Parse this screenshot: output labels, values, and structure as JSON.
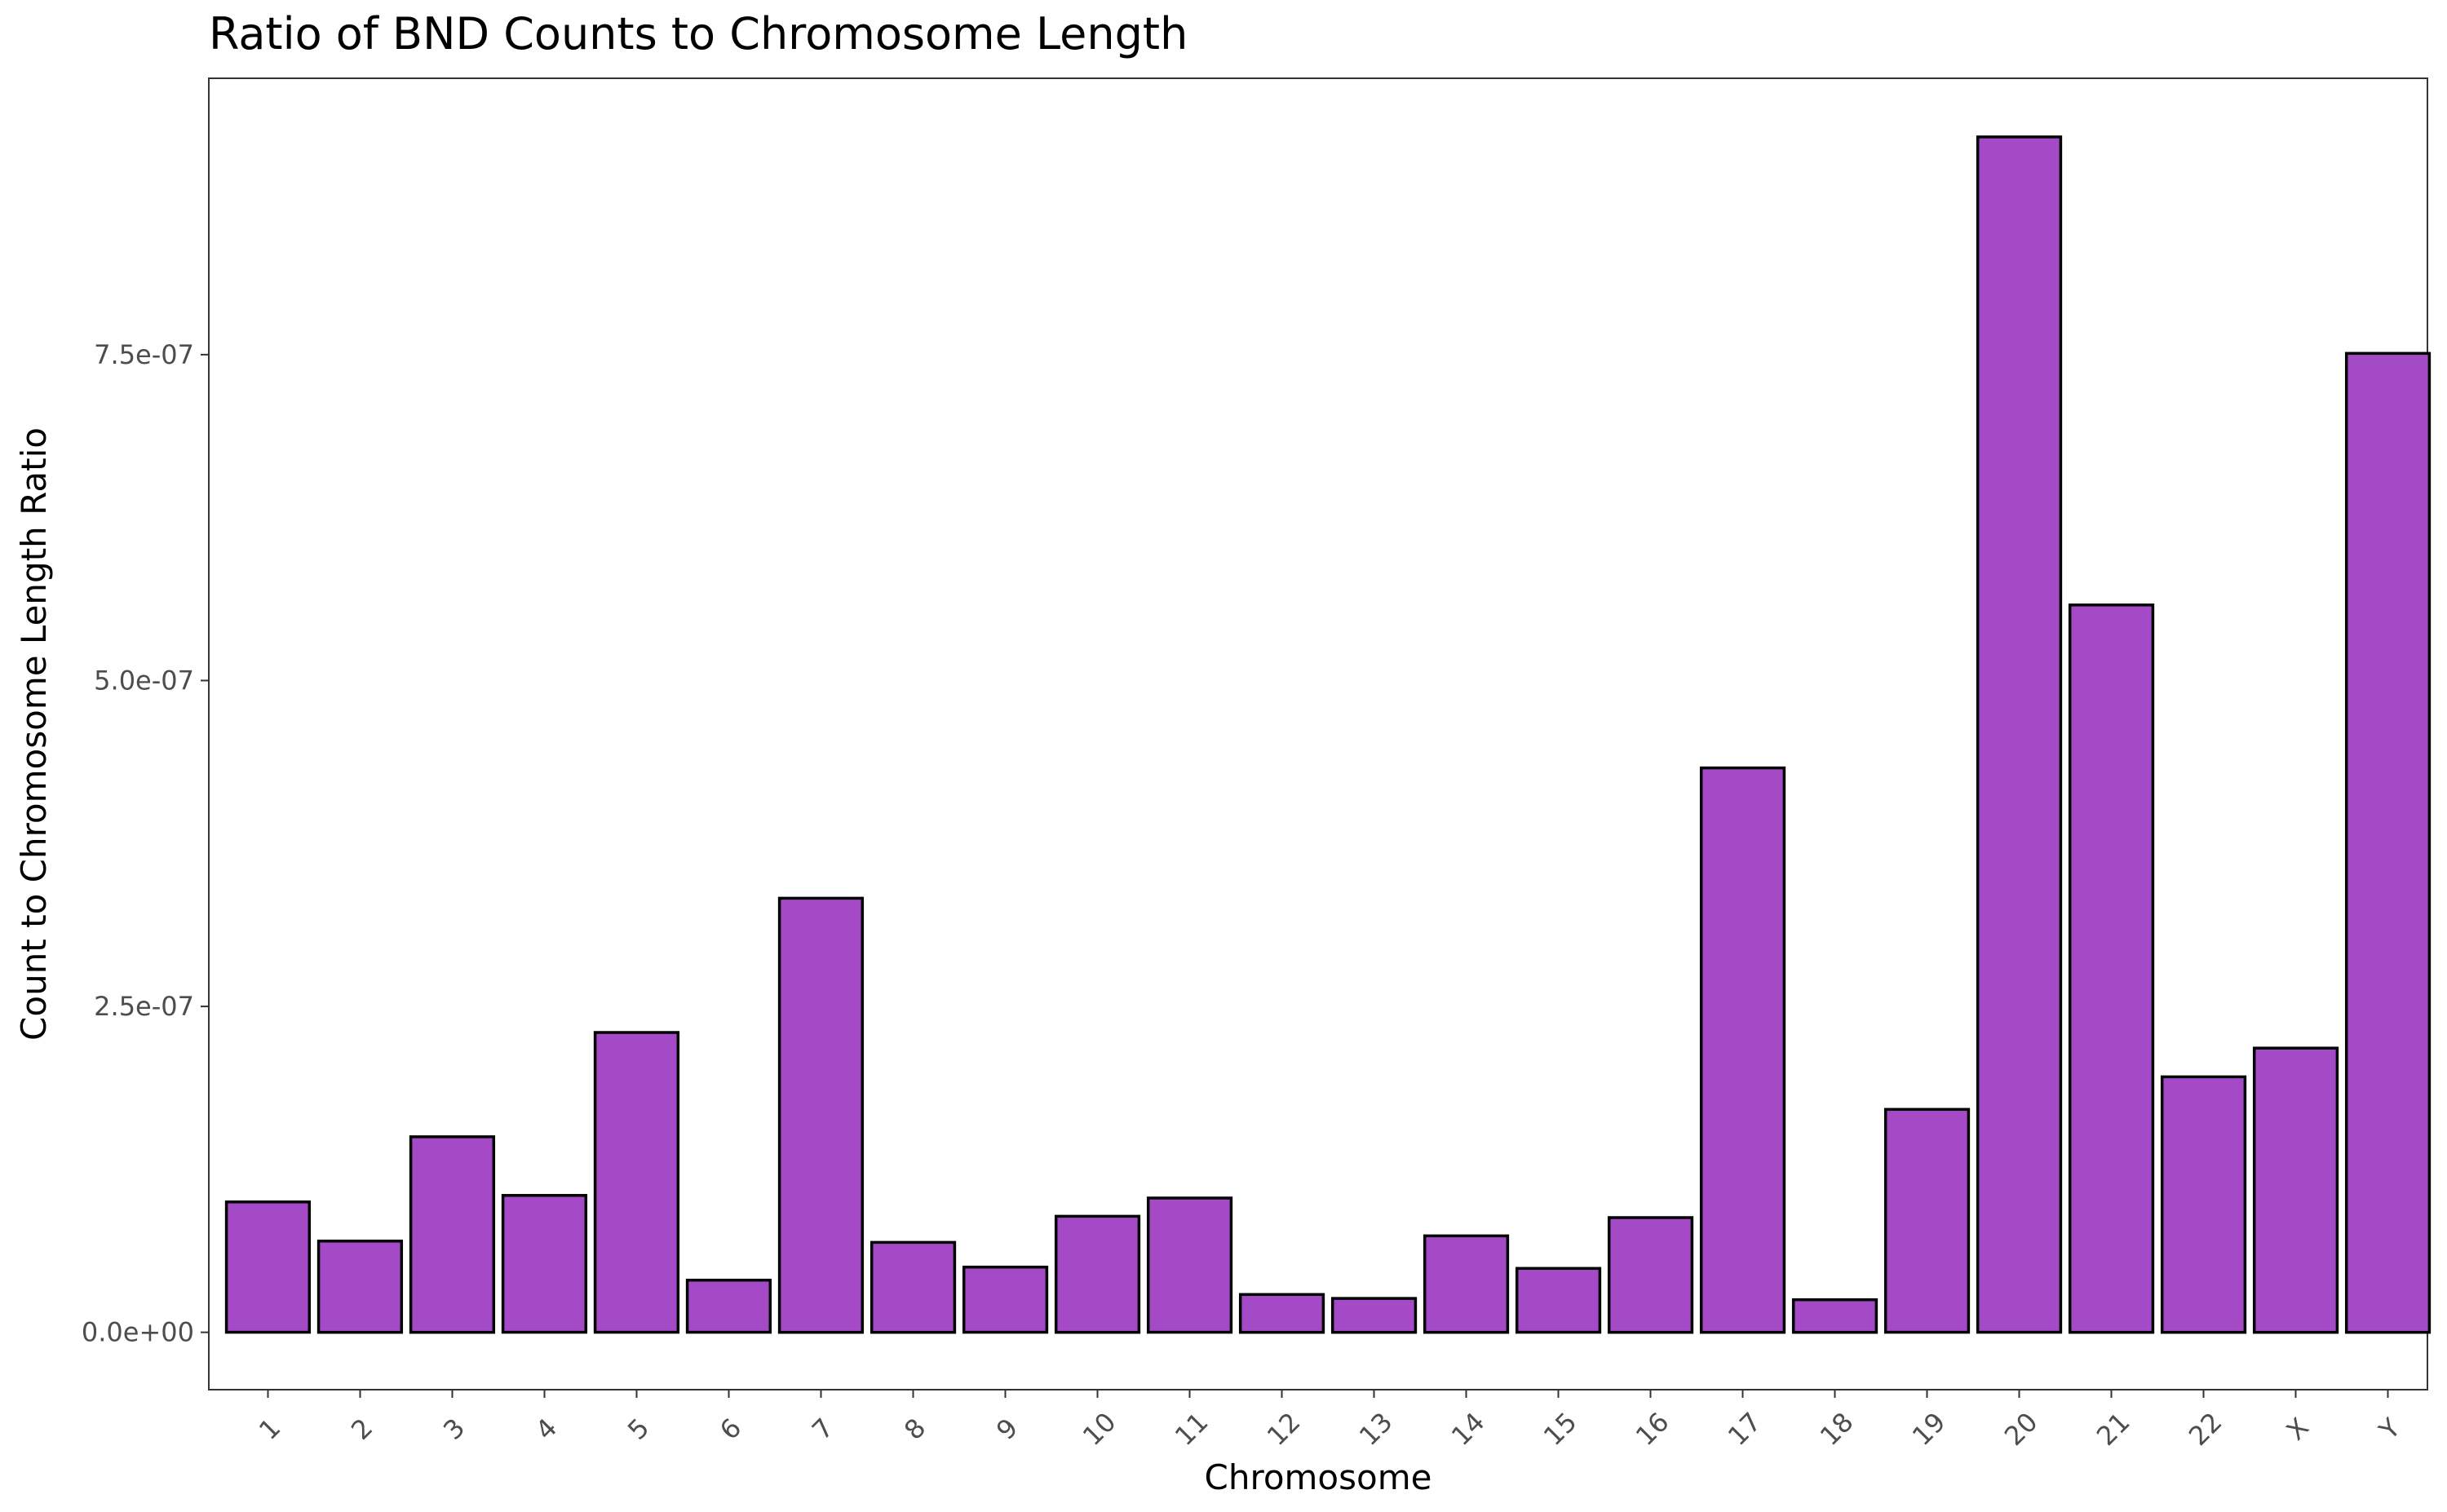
{
  "chart_data": {
    "type": "bar",
    "title": "Ratio of BND Counts to Chromosome Length",
    "xlabel": "Chromosome",
    "ylabel": "Count to Chromosome Length Ratio",
    "categories": [
      "1",
      "2",
      "3",
      "4",
      "5",
      "6",
      "7",
      "8",
      "9",
      "10",
      "11",
      "12",
      "13",
      "14",
      "15",
      "16",
      "17",
      "18",
      "19",
      "20",
      "21",
      "22",
      "X",
      "Y"
    ],
    "values": [
      1e-07,
      7e-08,
      1.5e-07,
      1.05e-07,
      2.3e-07,
      4e-08,
      3.33e-07,
      6.9e-08,
      5e-08,
      8.9e-08,
      1.03e-07,
      2.9e-08,
      2.6e-08,
      7.4e-08,
      4.9e-08,
      8.8e-08,
      4.33e-07,
      2.5e-08,
      1.71e-07,
      9.17e-07,
      5.58e-07,
      1.96e-07,
      2.18e-07,
      7.51e-07
    ],
    "yticks": [
      0,
      2.5e-07,
      5e-07,
      7.5e-07
    ],
    "ytick_labels": [
      "0.0e+00",
      "2.5e-07",
      "5.0e-07",
      "7.5e-07"
    ],
    "ylim": [
      -4.4e-08,
      9.62e-07
    ],
    "bar_fill": "#a54ac7",
    "bar_stroke": "#000000",
    "grid": false,
    "legend": "none"
  }
}
